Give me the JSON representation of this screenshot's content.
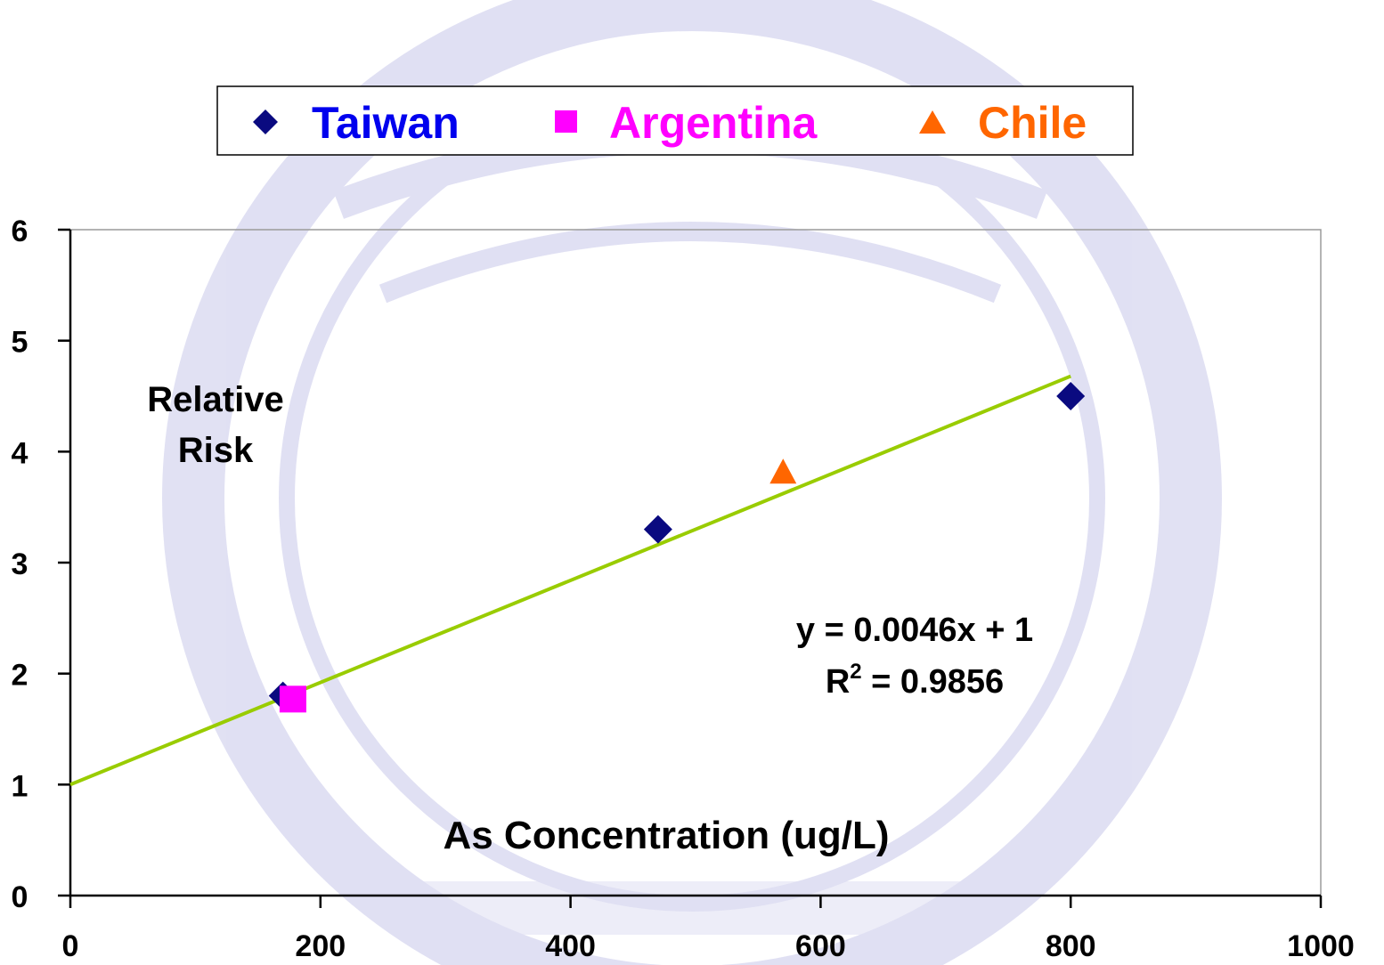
{
  "chart_data": {
    "type": "scatter",
    "xlabel": "As Concentration (ug/L)",
    "ylabel_line1": "Relative",
    "ylabel_line2": "Risk",
    "xlim": [
      0,
      1000
    ],
    "ylim": [
      0,
      6
    ],
    "x_ticks": [
      "0",
      "200",
      "400",
      "600",
      "800",
      "1000"
    ],
    "y_ticks": [
      "0",
      "1",
      "2",
      "3",
      "4",
      "5",
      "6"
    ],
    "grid": false,
    "legend_placement": "top",
    "series": [
      {
        "name": "Taiwan",
        "marker": "diamond",
        "color": "#0a0a80",
        "label_color": "#0000ee",
        "points": [
          [
            170,
            1.8
          ],
          [
            470,
            3.3
          ],
          [
            800,
            4.5
          ]
        ]
      },
      {
        "name": "Argentina",
        "marker": "square",
        "color": "#ff00ff",
        "label_color": "#ff00ff",
        "points": [
          [
            178,
            1.77
          ]
        ]
      },
      {
        "name": "Chile",
        "marker": "triangle",
        "color": "#ff6600",
        "label_color": "#ff6600",
        "points": [
          [
            570,
            3.8
          ]
        ]
      }
    ],
    "trendline": {
      "slope": 0.0046,
      "intercept": 1,
      "x_range": [
        0,
        800
      ],
      "color": "#99cc00",
      "equation": "y = 0.0046x + 1",
      "r2_prefix": "R",
      "r2_sup": "2",
      "r2_suffix": " = 0.9856"
    },
    "watermark_color": "#c8c8ea"
  }
}
